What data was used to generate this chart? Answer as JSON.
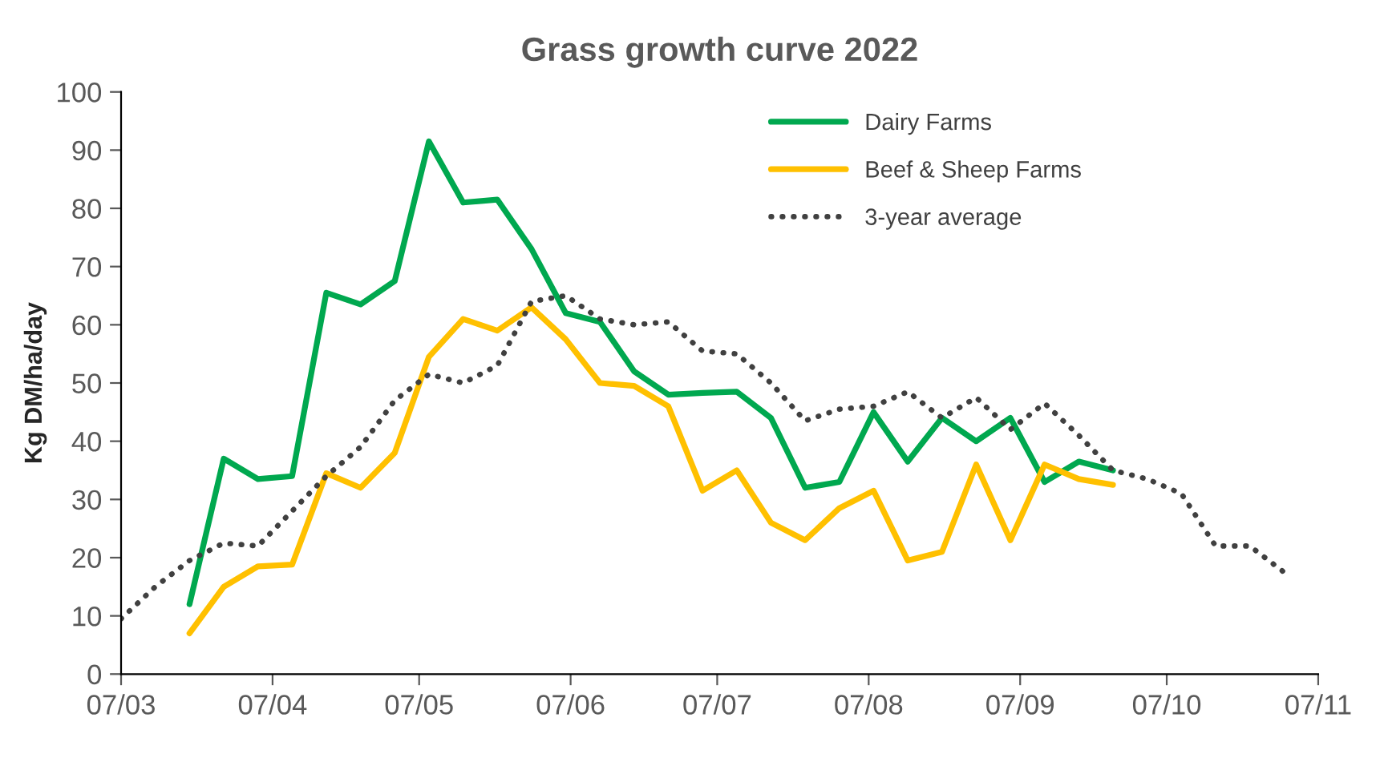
{
  "chart_data": {
    "type": "line",
    "title": "Grass growth curve 2022",
    "ylabel": "Kg DM/ha/day",
    "xlim": [
      "2022-03-07",
      "2022-11-07"
    ],
    "ylim": [
      0,
      100
    ],
    "xticks": [
      {
        "value": "2022-03-07",
        "label": "07/03"
      },
      {
        "value": "2022-04-07",
        "label": "07/04"
      },
      {
        "value": "2022-05-07",
        "label": "07/05"
      },
      {
        "value": "2022-06-07",
        "label": "07/06"
      },
      {
        "value": "2022-07-07",
        "label": "07/07"
      },
      {
        "value": "2022-08-07",
        "label": "07/08"
      },
      {
        "value": "2022-09-07",
        "label": "07/09"
      },
      {
        "value": "2022-10-07",
        "label": "07/10"
      },
      {
        "value": "2022-11-07",
        "label": "07/11"
      }
    ],
    "yticks": [
      0,
      10,
      20,
      30,
      40,
      50,
      60,
      70,
      80,
      90,
      100
    ],
    "grid": false,
    "legend": "top right",
    "series": [
      {
        "name": "Dairy Farms",
        "color": "#00a84f",
        "line_style": "solid",
        "x": [
          "2022-03-21",
          "2022-03-28",
          "2022-04-04",
          "2022-04-11",
          "2022-04-18",
          "2022-04-25",
          "2022-05-02",
          "2022-05-09",
          "2022-05-16",
          "2022-05-23",
          "2022-05-30",
          "2022-06-06",
          "2022-06-13",
          "2022-06-20",
          "2022-06-27",
          "2022-07-04",
          "2022-07-11",
          "2022-07-18",
          "2022-07-25",
          "2022-08-01",
          "2022-08-08",
          "2022-08-15",
          "2022-08-22",
          "2022-08-29",
          "2022-09-05",
          "2022-09-12",
          "2022-09-19",
          "2022-09-26"
        ],
        "values": [
          12,
          37,
          33.5,
          34,
          65.5,
          63.5,
          67.5,
          91.5,
          81,
          81.5,
          73,
          62,
          60.5,
          52,
          48,
          48.3,
          48.5,
          44,
          32,
          33,
          45,
          36.5,
          44,
          40,
          44,
          33,
          36.5,
          35
        ]
      },
      {
        "name": "Beef & Sheep Farms",
        "color": "#ffc000",
        "line_style": "solid",
        "x": [
          "2022-03-21",
          "2022-03-28",
          "2022-04-04",
          "2022-04-11",
          "2022-04-18",
          "2022-04-25",
          "2022-05-02",
          "2022-05-09",
          "2022-05-16",
          "2022-05-23",
          "2022-05-30",
          "2022-06-06",
          "2022-06-13",
          "2022-06-20",
          "2022-06-27",
          "2022-07-04",
          "2022-07-11",
          "2022-07-18",
          "2022-07-25",
          "2022-08-01",
          "2022-08-08",
          "2022-08-15",
          "2022-08-22",
          "2022-08-29",
          "2022-09-05",
          "2022-09-12",
          "2022-09-19",
          "2022-09-26"
        ],
        "values": [
          7,
          15,
          18.5,
          18.8,
          34.5,
          32,
          38,
          54.5,
          61,
          59,
          63,
          57.5,
          50,
          49.5,
          46,
          31.5,
          35,
          26,
          23,
          28.5,
          31.5,
          19.5,
          21,
          36,
          23,
          36,
          33.5,
          32.5
        ]
      },
      {
        "name": "3-year average",
        "color": "#404040",
        "line_style": "dotted",
        "x": [
          "2022-03-07",
          "2022-03-14",
          "2022-03-21",
          "2022-03-28",
          "2022-04-04",
          "2022-04-11",
          "2022-04-18",
          "2022-04-25",
          "2022-05-02",
          "2022-05-09",
          "2022-05-16",
          "2022-05-23",
          "2022-05-30",
          "2022-06-06",
          "2022-06-13",
          "2022-06-20",
          "2022-06-27",
          "2022-07-04",
          "2022-07-11",
          "2022-07-18",
          "2022-07-25",
          "2022-08-01",
          "2022-08-08",
          "2022-08-15",
          "2022-08-22",
          "2022-08-29",
          "2022-09-05",
          "2022-09-12",
          "2022-09-19",
          "2022-09-26",
          "2022-10-03",
          "2022-10-10",
          "2022-10-17",
          "2022-10-24",
          "2022-10-31"
        ],
        "values": [
          9.5,
          15,
          19.5,
          22.5,
          22,
          28,
          34,
          39,
          47,
          51.5,
          50,
          53,
          64,
          65,
          61,
          60,
          60.5,
          55.5,
          55,
          50,
          43.5,
          45.5,
          46,
          48.5,
          44,
          47.5,
          42,
          46.5,
          41,
          35,
          33.5,
          31,
          22,
          22,
          17.5
        ]
      }
    ]
  }
}
